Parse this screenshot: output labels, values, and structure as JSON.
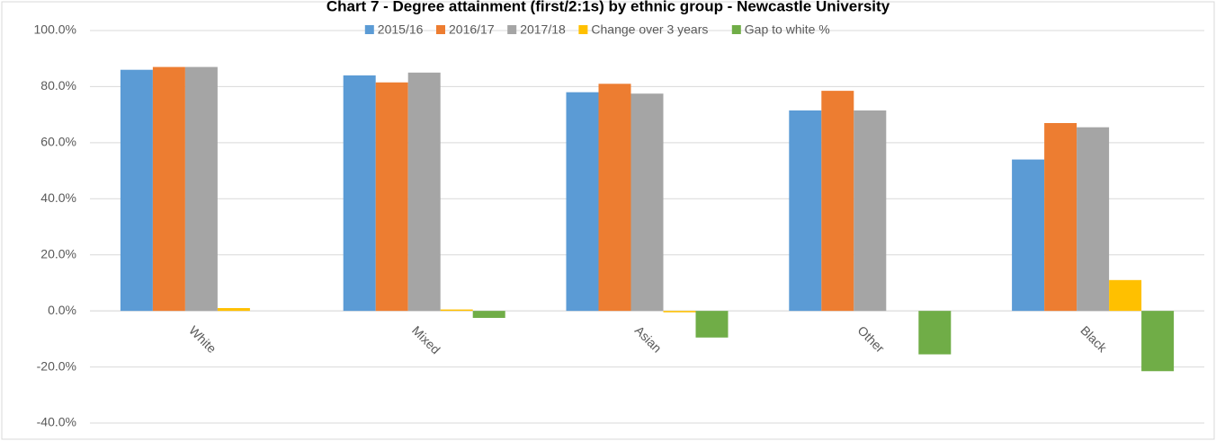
{
  "chart_data": {
    "type": "bar",
    "title": "Chart 7 - Degree attainment (first/2:1s) by ethnic group - Newcastle University",
    "categories": [
      "White",
      "Mixed",
      "Asian",
      "Other",
      "Black"
    ],
    "series": [
      {
        "name": "2015/16",
        "color": "#5b9bd5",
        "values": [
          86.0,
          84.0,
          78.0,
          71.5,
          54.0
        ]
      },
      {
        "name": "2016/17",
        "color": "#ed7d31",
        "values": [
          87.0,
          81.5,
          81.0,
          78.5,
          67.0
        ]
      },
      {
        "name": "2017/18",
        "color": "#a5a5a5",
        "values": [
          87.0,
          85.0,
          77.5,
          71.5,
          65.5
        ]
      },
      {
        "name": "Change over 3 years",
        "color": "#ffc000",
        "values": [
          1.0,
          0.5,
          -0.5,
          0.0,
          11.0
        ]
      },
      {
        "name": "Gap to white %",
        "color": "#70ad47",
        "values": [
          0.0,
          -2.5,
          -9.5,
          -15.5,
          -21.5
        ]
      }
    ],
    "ylim": [
      -40,
      100
    ],
    "yticks": [
      {
        "value": -40,
        "label": "-40.0%"
      },
      {
        "value": -20,
        "label": "-20.0%"
      },
      {
        "value": 0,
        "label": "0.0%"
      },
      {
        "value": 20,
        "label": "20.0%"
      },
      {
        "value": 40,
        "label": "40.0%"
      },
      {
        "value": 60,
        "label": "60.0%"
      },
      {
        "value": 80,
        "label": "80.0%"
      },
      {
        "value": 100,
        "label": "100.0%"
      }
    ],
    "grid": true,
    "legend": "top"
  }
}
